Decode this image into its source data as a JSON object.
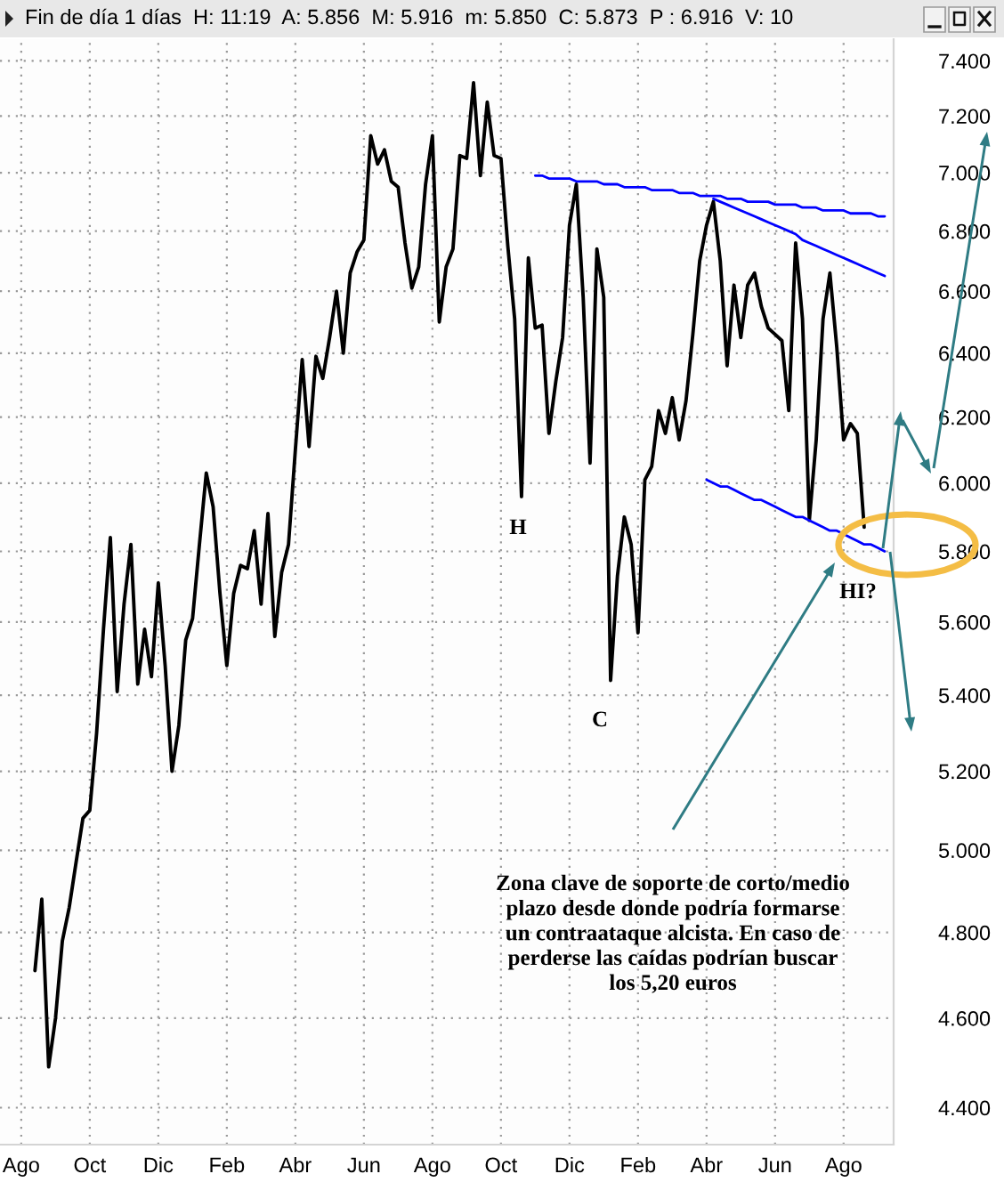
{
  "chart_data": {
    "type": "line",
    "title": "Fin de día 1 días  H: 11:19  A: 5.856  M: 5.916  m: 5.850  C: 5.873  P : 6.916  V: 10",
    "log": true,
    "grid": true,
    "categories": [
      "Ago",
      null,
      null,
      null,
      null,
      null,
      null,
      null,
      null,
      null,
      "Oct",
      null,
      null,
      null,
      null,
      null,
      null,
      null,
      null,
      null,
      "Dic",
      null,
      null,
      null,
      null,
      null,
      null,
      null,
      null,
      null,
      "Feb",
      null,
      null,
      null,
      null,
      null,
      null,
      null,
      null,
      null,
      "Abr",
      null,
      null,
      null,
      null,
      null,
      null,
      null,
      null,
      null,
      "Jun",
      null,
      null,
      null,
      null,
      null,
      null,
      null,
      null,
      null,
      "Ago",
      null,
      null,
      null,
      null,
      null,
      null,
      null,
      null,
      null,
      "Oct",
      null,
      null,
      null,
      null,
      null,
      null,
      null,
      null,
      null,
      "Dic",
      null,
      null,
      null,
      null,
      null,
      null,
      null,
      null,
      null,
      "Feb",
      null,
      null,
      null,
      null,
      null,
      null,
      null,
      null,
      null,
      "Abr",
      null,
      null,
      null,
      null,
      null,
      null,
      null,
      null,
      null,
      "Jun",
      null,
      null,
      null,
      null,
      null,
      null,
      null,
      null,
      null,
      "Ago",
      null,
      null,
      null,
      null,
      null,
      null
    ],
    "ylim": [
      4.32,
      7.48
    ],
    "yticks": [
      {
        "value": 4.4,
        "label": "4.400"
      },
      {
        "value": 4.6,
        "label": "4.600"
      },
      {
        "value": 4.8,
        "label": "4.800"
      },
      {
        "value": 5.0,
        "label": "5.000"
      },
      {
        "value": 5.2,
        "label": "5.200"
      },
      {
        "value": 5.4,
        "label": "5.400"
      },
      {
        "value": 5.6,
        "label": "5.600"
      },
      {
        "value": 5.8,
        "label": "5.800"
      },
      {
        "value": 6.0,
        "label": "6.000"
      },
      {
        "value": 6.2,
        "label": "6.200"
      },
      {
        "value": 6.4,
        "label": "6.400"
      },
      {
        "value": 6.6,
        "label": "6.600"
      },
      {
        "value": 6.8,
        "label": "6.800"
      },
      {
        "value": 7.0,
        "label": "7.000"
      },
      {
        "value": 7.2,
        "label": "7.200"
      },
      {
        "value": 7.4,
        "label": "7.400"
      }
    ],
    "series": [
      {
        "color": "#000000",
        "values": [
          null,
          null,
          4.71,
          4.88,
          4.49,
          4.6,
          4.78,
          4.86,
          4.97,
          5.08,
          5.1,
          5.3,
          5.58,
          5.84,
          5.41,
          5.65,
          5.82,
          5.43,
          5.58,
          5.45,
          5.71,
          5.48,
          5.2,
          5.32,
          5.55,
          5.61,
          5.82,
          6.03,
          5.93,
          5.68,
          5.48,
          5.68,
          5.76,
          5.75,
          5.86,
          5.65,
          5.91,
          5.56,
          5.74,
          5.82,
          6.1,
          6.38,
          6.11,
          6.39,
          6.32,
          6.45,
          6.6,
          6.4,
          6.66,
          6.73,
          6.77,
          7.13,
          7.03,
          7.08,
          6.97,
          6.95,
          6.76,
          6.61,
          6.68,
          6.96,
          7.13,
          6.5,
          6.68,
          6.74,
          7.06,
          7.05,
          7.32,
          6.99,
          7.25,
          7.06,
          7.05,
          6.75,
          6.51,
          5.96,
          6.71,
          6.48,
          6.49,
          6.15,
          6.31,
          6.45,
          6.82,
          6.96,
          6.58,
          6.06,
          6.74,
          6.58,
          5.44,
          5.73,
          5.9,
          5.82,
          5.57,
          6.01,
          6.05,
          6.22,
          6.15,
          6.26,
          6.13,
          6.25,
          6.46,
          6.7,
          6.82,
          6.9,
          6.7,
          6.36,
          6.62,
          6.45,
          6.62,
          6.66,
          6.55,
          6.48,
          6.46,
          6.44,
          6.22,
          6.76,
          6.51,
          5.89,
          6.13,
          6.51,
          6.66,
          6.42,
          6.13,
          6.18,
          6.15,
          5.87,
          null,
          null,
          null
        ]
      },
      {
        "type": "line",
        "color": "#0000ff",
        "values": [
          null,
          null,
          null,
          null,
          null,
          null,
          null,
          null,
          null,
          null,
          null,
          null,
          null,
          null,
          null,
          null,
          null,
          null,
          null,
          null,
          null,
          null,
          null,
          null,
          null,
          null,
          null,
          null,
          null,
          null,
          null,
          null,
          null,
          null,
          null,
          null,
          null,
          null,
          null,
          null,
          null,
          null,
          null,
          null,
          null,
          null,
          null,
          null,
          null,
          null,
          null,
          null,
          null,
          null,
          null,
          null,
          null,
          null,
          null,
          null,
          null,
          null,
          null,
          null,
          null,
          null,
          null,
          null,
          null,
          null,
          null,
          null,
          null,
          null,
          null,
          6.99,
          6.99,
          6.98,
          6.98,
          6.98,
          6.98,
          6.97,
          6.97,
          6.97,
          6.97,
          6.96,
          6.96,
          6.96,
          6.95,
          6.95,
          6.95,
          6.95,
          6.94,
          6.94,
          6.94,
          6.94,
          6.93,
          6.93,
          6.93,
          6.92,
          6.92,
          6.92,
          6.92,
          6.91,
          6.91,
          6.91,
          6.9,
          6.9,
          6.9,
          6.9,
          6.89,
          6.89,
          6.89,
          6.89,
          6.88,
          6.88,
          6.88,
          6.87,
          6.87,
          6.87,
          6.87,
          6.86,
          6.86,
          6.86,
          6.86,
          6.85,
          6.85
        ]
      },
      {
        "type": "line",
        "color": "#0000ff",
        "values": [
          null,
          null,
          null,
          null,
          null,
          null,
          null,
          null,
          null,
          null,
          null,
          null,
          null,
          null,
          null,
          null,
          null,
          null,
          null,
          null,
          null,
          null,
          null,
          null,
          null,
          null,
          null,
          null,
          null,
          null,
          null,
          null,
          null,
          null,
          null,
          null,
          null,
          null,
          null,
          null,
          null,
          null,
          null,
          null,
          null,
          null,
          null,
          null,
          null,
          null,
          null,
          null,
          null,
          null,
          null,
          null,
          null,
          null,
          null,
          null,
          null,
          null,
          null,
          null,
          null,
          null,
          null,
          null,
          null,
          null,
          null,
          null,
          null,
          null,
          null,
          null,
          null,
          null,
          null,
          null,
          null,
          null,
          null,
          null,
          null,
          null,
          null,
          null,
          null,
          null,
          null,
          null,
          null,
          null,
          null,
          null,
          null,
          null,
          null,
          null,
          null,
          6.91,
          6.9,
          6.89,
          6.88,
          6.87,
          6.86,
          6.85,
          6.84,
          6.83,
          6.82,
          6.81,
          6.8,
          6.79,
          6.77,
          6.76,
          6.75,
          6.74,
          6.73,
          6.72,
          6.71,
          6.7,
          6.69,
          6.68,
          6.67,
          6.66,
          6.65
        ]
      },
      {
        "type": "line",
        "color": "#0000ff",
        "values": [
          null,
          null,
          null,
          null,
          null,
          null,
          null,
          null,
          null,
          null,
          null,
          null,
          null,
          null,
          null,
          null,
          null,
          null,
          null,
          null,
          null,
          null,
          null,
          null,
          null,
          null,
          null,
          null,
          null,
          null,
          null,
          null,
          null,
          null,
          null,
          null,
          null,
          null,
          null,
          null,
          null,
          null,
          null,
          null,
          null,
          null,
          null,
          null,
          null,
          null,
          null,
          null,
          null,
          null,
          null,
          null,
          null,
          null,
          null,
          null,
          null,
          null,
          null,
          null,
          null,
          null,
          null,
          null,
          null,
          null,
          null,
          null,
          null,
          null,
          null,
          null,
          null,
          null,
          null,
          null,
          null,
          null,
          null,
          null,
          null,
          null,
          null,
          null,
          null,
          null,
          null,
          null,
          null,
          null,
          null,
          null,
          null,
          null,
          null,
          null,
          6.01,
          6.0,
          5.99,
          5.99,
          5.98,
          5.97,
          5.96,
          5.95,
          5.95,
          5.94,
          5.93,
          5.92,
          5.91,
          5.9,
          5.9,
          5.89,
          5.88,
          5.87,
          5.86,
          5.86,
          5.85,
          5.84,
          5.83,
          5.82,
          5.82,
          5.81,
          5.8
        ]
      }
    ],
    "annotations": [
      "H",
      "C",
      "HI?",
      "Zona clave de soporte de corto/medio\nplazo desde donde podría formarse\nun contraataque alcista. En caso de\nperderse las caídas podrían buscar\nlos 5,20 euros"
    ]
  }
}
